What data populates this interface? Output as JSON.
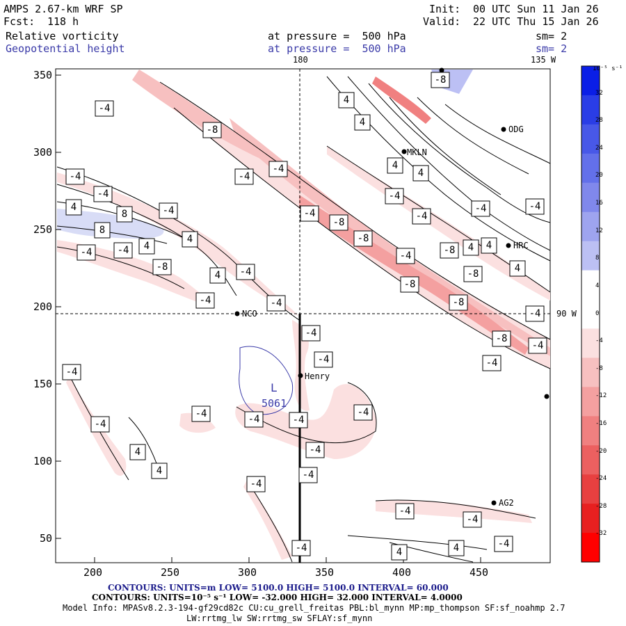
{
  "header": {
    "model": "AMPS 2.67-km WRF SP",
    "init_label": "Init:",
    "init_value": "00 UTC Sun 11 Jan 26",
    "fcst_label": "Fcst:",
    "fcst_value": "118 h",
    "valid_label": "Valid:",
    "valid_value": "22 UTC Thu 15 Jan 26",
    "field1_name": "Relative vorticity",
    "field1_level": "at pressure =  500 hPa",
    "field1_sm": "sm= 2",
    "field2_name": "Geopotential height",
    "field2_level": "at pressure =  500 hPa",
    "field2_sm": "sm= 2"
  },
  "map": {
    "meridian_label": "180",
    "corner_label": "135 W",
    "parallel_label": "90 W",
    "x_ticks": [
      "200",
      "250",
      "300",
      "350",
      "400",
      "450"
    ],
    "y_ticks": [
      "350",
      "300",
      "250",
      "200",
      "150",
      "100",
      "50"
    ],
    "stations": [
      "NCO",
      "Henry",
      "MKLN",
      "ODG",
      "HRC",
      "AG2"
    ],
    "low_center": {
      "label": "L",
      "value": "5061"
    },
    "contour_labels": [
      "-4",
      "-8",
      "4",
      "8"
    ]
  },
  "colorbar": {
    "unit": "10⁻⁵ s⁻¹",
    "levels": [
      "32",
      "28",
      "24",
      "20",
      "16",
      "12",
      "8",
      "4",
      "0",
      "-4",
      "-8",
      "-12",
      "-16",
      "-20",
      "-24",
      "-28",
      "-32"
    ],
    "colors": [
      "#0a1ee6",
      "#2a3de6",
      "#4858e8",
      "#6370ea",
      "#8088ec",
      "#9ea4ef",
      "#bcc0f4",
      "#ffffff",
      "#ffffff",
      "#fbe0e0",
      "#f7c0c0",
      "#f4a0a0",
      "#f08080",
      "#ec6060",
      "#e84040",
      "#e82020",
      "#ff0000"
    ]
  },
  "footer": {
    "contours_height": "CONTOURS:  UNITS=m  LOW=  5100.0     HIGH=  5100.0     INTERVAL=   60.000",
    "contours_vort": "CONTOURS:  UNITS=10⁻⁵ s⁻¹  LOW= -32.000     HIGH=  32.000     INTERVAL=   4.0000",
    "model_info_1": "Model Info: MPASv8.2.3-194-gf29cd82c CU:cu_grell_freitas PBL:bl_mynn MP:mp_thompson SF:sf_noahmp 2.7",
    "model_info_2": "LW:rrtmg_lw SW:rrtmg_sw SFLAY:sf_mynn"
  }
}
